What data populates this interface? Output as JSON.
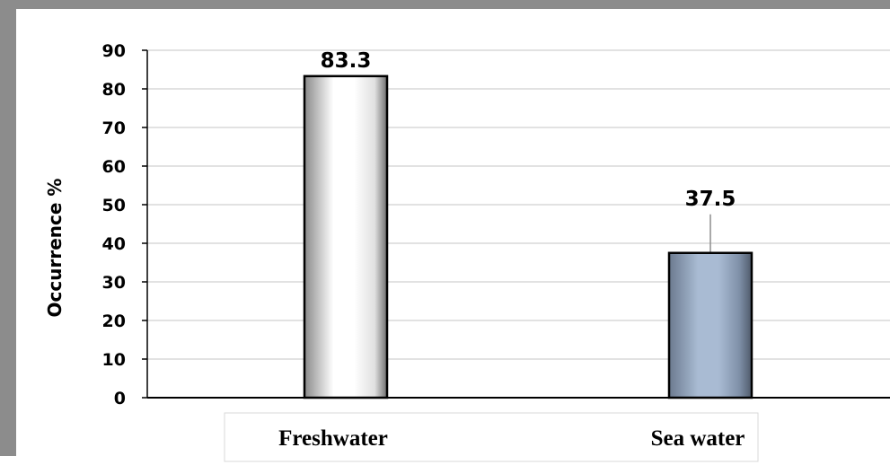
{
  "chart_data": {
    "type": "bar",
    "categories": [
      "Freshwater",
      "Sea water"
    ],
    "values": [
      83.3,
      37.5
    ],
    "data_labels": [
      "83.3",
      "37.5"
    ],
    "error_upper": [
      null,
      47.5
    ],
    "title": "",
    "xlabel": "",
    "ylabel": "Occurrence %",
    "ylim": [
      0,
      90
    ],
    "yticks": [
      0,
      10,
      20,
      30,
      40,
      50,
      60,
      70,
      80,
      90
    ],
    "grid": true,
    "legend": "none",
    "colors": {
      "freshwater": [
        "#8a8a8a",
        "#ffffff",
        "#ffffff",
        "#e0e0e0",
        "#6e6e6e"
      ],
      "sea_water": [
        "#6b7a8f",
        "#a9bbd3",
        "#a9bbd3",
        "#7f90a8",
        "#4f5a6b"
      ],
      "grid": "#d9d9d9",
      "frame": "#8c8c8c"
    }
  }
}
